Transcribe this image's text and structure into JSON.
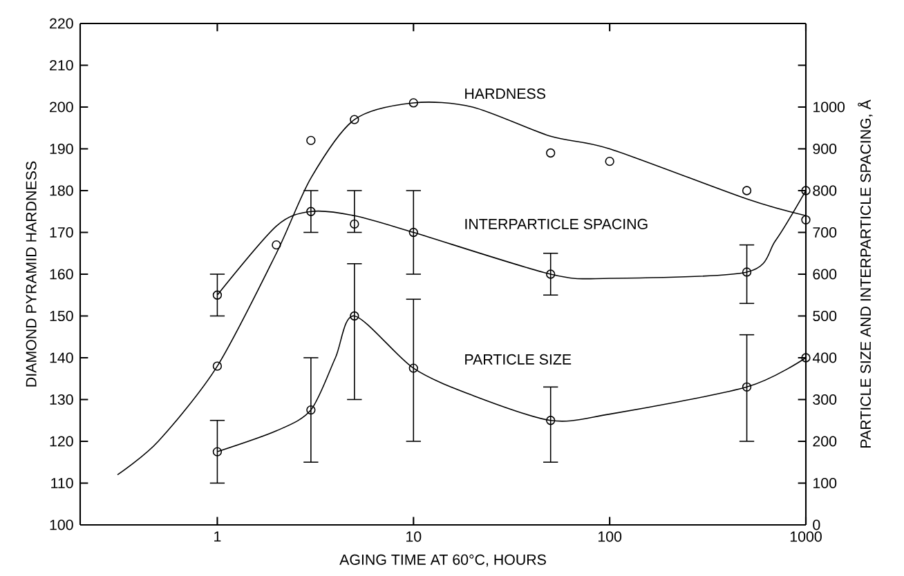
{
  "chart_data": {
    "type": "line",
    "xlabel": "AGING TIME AT 60°C, HOURS",
    "ylabel": "DIAMOND PYRAMID HARDNESS",
    "y2label": "PARTICLE SIZE AND INTERPARTICLE SPACING, Å",
    "log": "x",
    "xlim": [
      0.2,
      1000
    ],
    "xticks": [
      1,
      10,
      100,
      1000
    ],
    "ylim": [
      100,
      220
    ],
    "yticks": [
      100,
      110,
      120,
      130,
      140,
      150,
      160,
      170,
      180,
      190,
      200,
      210,
      220
    ],
    "y2lim": [
      0,
      1200
    ],
    "y2ticks": [
      0,
      100,
      200,
      300,
      400,
      500,
      600,
      700,
      800,
      900,
      1000,
      {
        "value": 1100,
        "label": null
      }
    ],
    "series": [
      {
        "x": [
          0.31,
          0.5,
          1,
          2,
          3,
          5,
          10,
          20,
          50,
          100,
          500,
          1000
        ],
        "values": [
          112,
          120,
          138,
          165,
          183,
          197,
          201,
          200,
          193,
          190,
          178,
          174
        ],
        "color": "#000000",
        "marker": "none"
      },
      {
        "type": "scatter",
        "x": [
          1,
          2,
          3,
          5,
          10,
          50,
          100,
          500,
          1000
        ],
        "values": [
          138,
          167,
          192,
          197,
          201,
          189,
          187,
          180,
          173
        ],
        "color": "#000000",
        "marker": "circle"
      },
      {
        "axis": "y2",
        "x": [
          1,
          2,
          3,
          5,
          10,
          50,
          100,
          500,
          700,
          1000
        ],
        "values": [
          550,
          715,
          750,
          740,
          700,
          600,
          590,
          605,
          680,
          800
        ],
        "color": "#000000",
        "marker": "none"
      },
      {
        "type": "scatter",
        "axis": "y2",
        "x": [
          1,
          3,
          5,
          10,
          50,
          500,
          1000
        ],
        "values": [
          550,
          750,
          720,
          700,
          600,
          605,
          800
        ],
        "errors": [
          [
            500,
            600
          ],
          [
            700,
            800
          ],
          [
            700,
            800
          ],
          [
            600,
            800
          ],
          [
            550,
            650
          ],
          [
            530,
            670
          ],
          null
        ],
        "color": "#000000",
        "marker": "circle"
      },
      {
        "axis": "y2",
        "x": [
          1,
          2,
          3,
          4,
          5,
          10,
          20,
          50,
          100,
          500,
          1000
        ],
        "values": [
          175,
          225,
          275,
          400,
          500,
          375,
          310,
          250,
          265,
          330,
          400
        ],
        "color": "#000000",
        "marker": "none"
      },
      {
        "type": "scatter",
        "axis": "y2",
        "x": [
          1,
          3,
          5,
          10,
          50,
          500,
          1000
        ],
        "values": [
          175,
          275,
          500,
          375,
          250,
          330,
          400
        ],
        "errors": [
          [
            100,
            250
          ],
          [
            150,
            400
          ],
          [
            300,
            625
          ],
          [
            200,
            540
          ],
          [
            150,
            330
          ],
          [
            200,
            455
          ],
          null
        ],
        "color": "#000000",
        "marker": "circle"
      }
    ],
    "annotations": [
      "HARDNESS",
      "INTERPARTICLE SPACING",
      "PARTICLE SIZE"
    ]
  }
}
